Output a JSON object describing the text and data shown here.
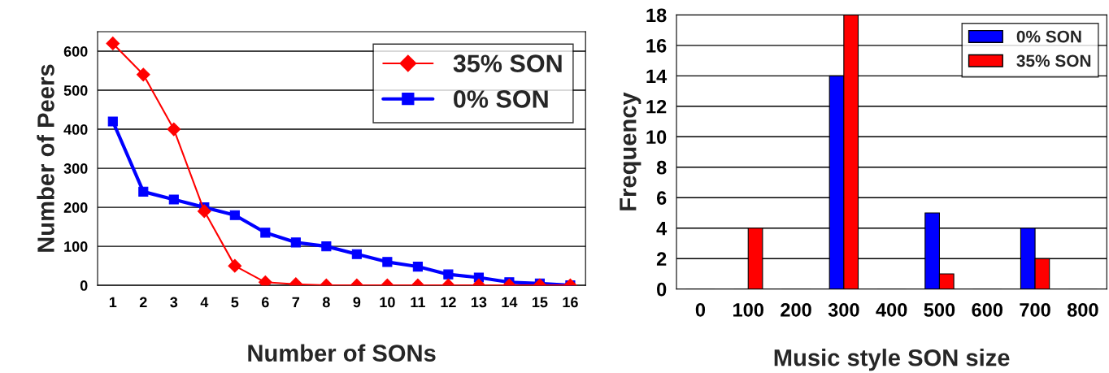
{
  "chart_data": [
    {
      "type": "line",
      "xlabel": "Number of SONs",
      "ylabel": "Number of Peers",
      "categories": [
        "1",
        "2",
        "3",
        "4",
        "5",
        "6",
        "7",
        "8",
        "9",
        "10",
        "11",
        "12",
        "13",
        "14",
        "15",
        "16"
      ],
      "series": [
        {
          "name": "35% SON",
          "color": "#ff0000",
          "marker": "diamond",
          "values": [
            620,
            540,
            400,
            190,
            50,
            8,
            3,
            0,
            0,
            0,
            0,
            0,
            0,
            0,
            0,
            0
          ]
        },
        {
          "name": "0% SON",
          "color": "#0000ff",
          "marker": "square",
          "values": [
            420,
            240,
            220,
            200,
            180,
            135,
            110,
            100,
            80,
            60,
            48,
            28,
            20,
            8,
            5,
            0
          ]
        }
      ],
      "ylim": [
        0,
        650
      ],
      "yticks": [
        0,
        100,
        200,
        300,
        400,
        500,
        600
      ],
      "grid": "y",
      "legend": "top right",
      "line_style": "solid"
    },
    {
      "type": "bar",
      "xlabel": "Music style SON size",
      "ylabel": "Frequency",
      "categories": [
        "0",
        "100",
        "200",
        "300",
        "400",
        "500",
        "600",
        "700",
        "800"
      ],
      "series": [
        {
          "name": "0% SON",
          "color": "#0000ff",
          "values": [
            0,
            0,
            0,
            14,
            0,
            5,
            0,
            4,
            0
          ]
        },
        {
          "name": "35% SON",
          "color": "#ff0000",
          "values": [
            0,
            4,
            0,
            18,
            0,
            1,
            0,
            2,
            0
          ]
        }
      ],
      "ylim": [
        0,
        18
      ],
      "yticks": [
        0,
        2,
        4,
        6,
        8,
        10,
        12,
        14,
        16,
        18
      ],
      "grid": "y",
      "legend": "top right"
    }
  ]
}
